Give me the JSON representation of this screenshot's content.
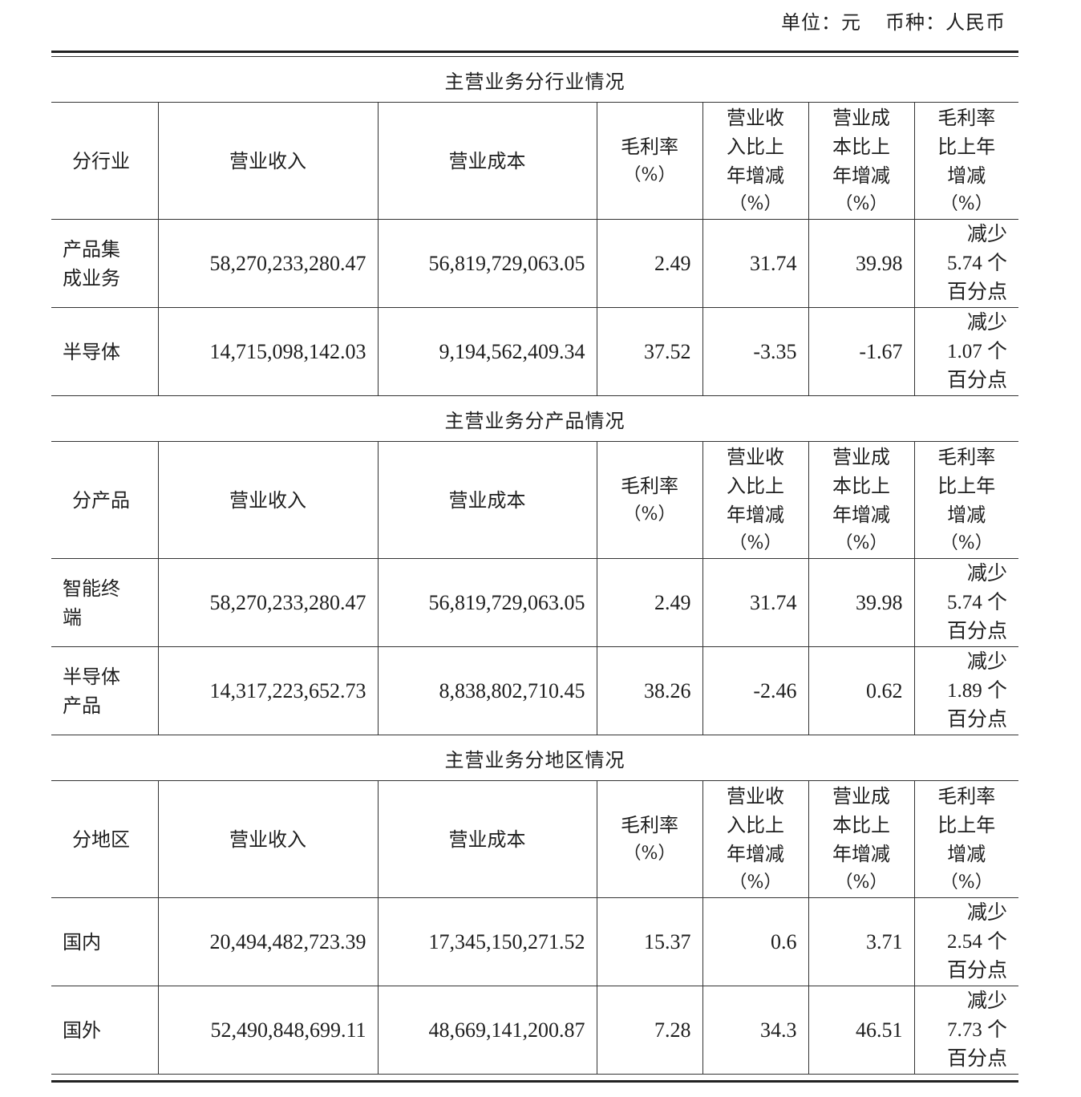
{
  "unit_label": "单位：元",
  "currency_label": "币种：人民币",
  "headers": {
    "revenue": "营业收入",
    "cost": "营业成本",
    "margin": [
      "毛利率",
      "（%）"
    ],
    "revenue_change": [
      "营业收",
      "入比上",
      "年增减",
      "（%）"
    ],
    "cost_change": [
      "营业成",
      "本比上",
      "年增减",
      "（%）"
    ],
    "margin_change": [
      "毛利率",
      "比上年",
      "增减",
      "（%）"
    ]
  },
  "sections": [
    {
      "title": "主营业务分行业情况",
      "first_header": "分行业",
      "rows": [
        {
          "name": [
            "产品集",
            "成业务"
          ],
          "revenue": "58,270,233,280.47",
          "cost": "56,819,729,063.05",
          "margin": "2.49",
          "revenue_change": "31.74",
          "cost_change": "39.98",
          "margin_change": [
            "减少",
            "5.74 个",
            "百分点"
          ]
        },
        {
          "name": [
            "半导体"
          ],
          "revenue": "14,715,098,142.03",
          "cost": "9,194,562,409.34",
          "margin": "37.52",
          "revenue_change": "-3.35",
          "cost_change": "-1.67",
          "margin_change": [
            "减少",
            "1.07 个",
            "百分点"
          ]
        }
      ]
    },
    {
      "title": "主营业务分产品情况",
      "first_header": "分产品",
      "rows": [
        {
          "name": [
            "智能终",
            "端"
          ],
          "revenue": "58,270,233,280.47",
          "cost": "56,819,729,063.05",
          "margin": "2.49",
          "revenue_change": "31.74",
          "cost_change": "39.98",
          "margin_change": [
            "减少",
            "5.74 个",
            "百分点"
          ]
        },
        {
          "name": [
            "半导体",
            "产品"
          ],
          "revenue": "14,317,223,652.73",
          "cost": "8,838,802,710.45",
          "margin": "38.26",
          "revenue_change": "-2.46",
          "cost_change": "0.62",
          "margin_change": [
            "减少",
            "1.89 个",
            "百分点"
          ]
        }
      ]
    },
    {
      "title": "主营业务分地区情况",
      "first_header": "分地区",
      "rows": [
        {
          "name": [
            "国内"
          ],
          "revenue": "20,494,482,723.39",
          "cost": "17,345,150,271.52",
          "margin": "15.37",
          "revenue_change": "0.6",
          "cost_change": "3.71",
          "margin_change": [
            "减少",
            "2.54 个",
            "百分点"
          ]
        },
        {
          "name": [
            "国外"
          ],
          "revenue": "52,490,848,699.11",
          "cost": "48,669,141,200.87",
          "margin": "7.28",
          "revenue_change": "34.3",
          "cost_change": "46.51",
          "margin_change": [
            "减少",
            "7.73 个",
            "百分点"
          ]
        }
      ]
    }
  ]
}
